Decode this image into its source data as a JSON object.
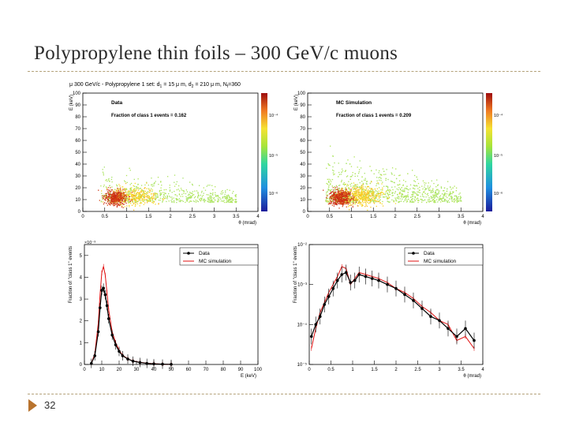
{
  "slide": {
    "title": "Polypropylene thin foils – 300 GeV/c muons",
    "page_number": "32",
    "header_prefix": "μ 300 GeV/c - Polypropylene 1 set: d",
    "header_suffix": " = 15 μ m, d",
    "header_suffix2": " = 210 μ m, N",
    "header_end": "=360",
    "sub1": "1",
    "sub2": "2",
    "subN": "f"
  },
  "chart_data": [
    {
      "type": "heatmap",
      "panel": "top-left",
      "legend_title": "Data",
      "annotation": "Fraction of class 1 events = 0.162",
      "xlabel": "θ (mrad)",
      "ylabel": "E (keV)",
      "xlim": [
        0,
        4
      ],
      "ylim": [
        0,
        100
      ],
      "xticks": [
        "0",
        "0.5",
        "1",
        "1.5",
        "2",
        "2.5",
        "3",
        "3.5",
        "4"
      ],
      "yticks": [
        "0",
        "10",
        "20",
        "30",
        "40",
        "50",
        "60",
        "70",
        "80",
        "90",
        "100"
      ],
      "colorbar_ticks": [
        "10⁻⁴",
        "10⁻⁵",
        "10⁻⁶"
      ],
      "hotspot": {
        "theta": 0.75,
        "E": 12
      },
      "secondary": {
        "theta": 1.2,
        "E": 13
      }
    },
    {
      "type": "heatmap",
      "panel": "top-right",
      "legend_title": "MC Simulation",
      "annotation": "Fraction of class 1 events = 0.209",
      "xlabel": "θ (mrad)",
      "ylabel": "E (keV)",
      "xlim": [
        0,
        4
      ],
      "ylim": [
        0,
        100
      ],
      "xticks": [
        "0",
        "0.5",
        "1",
        "1.5",
        "2",
        "2.5",
        "3",
        "3.5",
        "4"
      ],
      "yticks": [
        "0",
        "10",
        "20",
        "30",
        "40",
        "50",
        "60",
        "70",
        "80",
        "90",
        "100"
      ],
      "colorbar_ticks": [
        "10⁻⁴",
        "10⁻⁵",
        "10⁻⁶"
      ],
      "hotspot": {
        "theta": 0.75,
        "E": 12
      },
      "secondary": {
        "theta": 1.2,
        "E": 14
      }
    },
    {
      "type": "line",
      "panel": "bottom-left",
      "exponent": "×10⁻³",
      "xlabel": "E (keV)",
      "ylabel": "Fraction of \"class 1\" events",
      "xlim": [
        0,
        100
      ],
      "ylim": [
        0,
        5.5
      ],
      "xticks": [
        "0",
        "10",
        "20",
        "30",
        "40",
        "50",
        "60",
        "70",
        "80",
        "90",
        "100"
      ],
      "yticks": [
        "0",
        "1",
        "2",
        "3",
        "4",
        "5"
      ],
      "legend": [
        "Data",
        "MC simulation"
      ],
      "series": [
        {
          "name": "Data",
          "x": [
            4,
            6,
            8,
            9,
            10,
            11,
            12,
            13,
            14,
            16,
            18,
            20,
            22,
            25,
            28,
            32,
            36,
            40,
            45,
            50
          ],
          "y": [
            0.05,
            0.4,
            1.5,
            2.6,
            3.4,
            3.5,
            3.2,
            2.7,
            2.1,
            1.35,
            0.9,
            0.6,
            0.4,
            0.25,
            0.15,
            0.09,
            0.05,
            0.03,
            0.015,
            0.005
          ]
        },
        {
          "name": "MC simulation",
          "x": [
            4,
            6,
            8,
            9,
            10,
            11,
            12,
            13,
            14,
            16,
            18,
            20,
            22,
            25,
            28,
            32,
            36,
            40,
            45,
            50
          ],
          "y": [
            0.05,
            0.5,
            1.9,
            3.2,
            4.2,
            4.5,
            4.1,
            3.3,
            2.5,
            1.5,
            1.0,
            0.65,
            0.42,
            0.26,
            0.16,
            0.1,
            0.06,
            0.035,
            0.015,
            0.005
          ]
        }
      ]
    },
    {
      "type": "line",
      "panel": "bottom-right",
      "xlabel": "θ (mrad)",
      "ylabel": "Fraction of \"class 1\" events",
      "xlim": [
        0,
        4
      ],
      "ylim_log10": [
        -5,
        -2
      ],
      "xticks": [
        "0",
        "0.5",
        "1",
        "1.5",
        "2",
        "2.5",
        "3",
        "3.5",
        "4"
      ],
      "yticks": [
        "10⁻⁵",
        "10⁻⁴",
        "10⁻³",
        "10⁻²"
      ],
      "legend": [
        "Data",
        "MC simulation"
      ],
      "series": [
        {
          "name": "Data",
          "x": [
            0.05,
            0.15,
            0.25,
            0.35,
            0.45,
            0.55,
            0.65,
            0.75,
            0.85,
            0.95,
            1.05,
            1.15,
            1.3,
            1.45,
            1.6,
            1.8,
            2.0,
            2.2,
            2.4,
            2.6,
            2.8,
            3.0,
            3.2,
            3.4,
            3.6,
            3.8
          ],
          "logy": [
            -4.3,
            -4.0,
            -3.8,
            -3.5,
            -3.3,
            -3.1,
            -2.9,
            -2.75,
            -2.7,
            -2.95,
            -2.9,
            -2.75,
            -2.8,
            -2.85,
            -2.9,
            -3.0,
            -3.1,
            -3.25,
            -3.4,
            -3.6,
            -3.8,
            -3.9,
            -4.1,
            -4.3,
            -4.1,
            -4.4
          ]
        },
        {
          "name": "MC simulation",
          "x": [
            0.05,
            0.15,
            0.25,
            0.35,
            0.45,
            0.55,
            0.65,
            0.75,
            0.85,
            0.95,
            1.05,
            1.15,
            1.3,
            1.45,
            1.6,
            1.8,
            2.0,
            2.2,
            2.4,
            2.6,
            2.8,
            3.0,
            3.2,
            3.4,
            3.6,
            3.8
          ],
          "logy": [
            -4.6,
            -4.1,
            -3.7,
            -3.45,
            -3.2,
            -3.0,
            -2.8,
            -2.55,
            -2.6,
            -3.0,
            -2.85,
            -2.7,
            -2.75,
            -2.8,
            -2.85,
            -2.95,
            -3.1,
            -3.2,
            -3.35,
            -3.55,
            -3.7,
            -3.9,
            -4.0,
            -4.4,
            -4.3,
            -4.6
          ]
        }
      ]
    }
  ]
}
